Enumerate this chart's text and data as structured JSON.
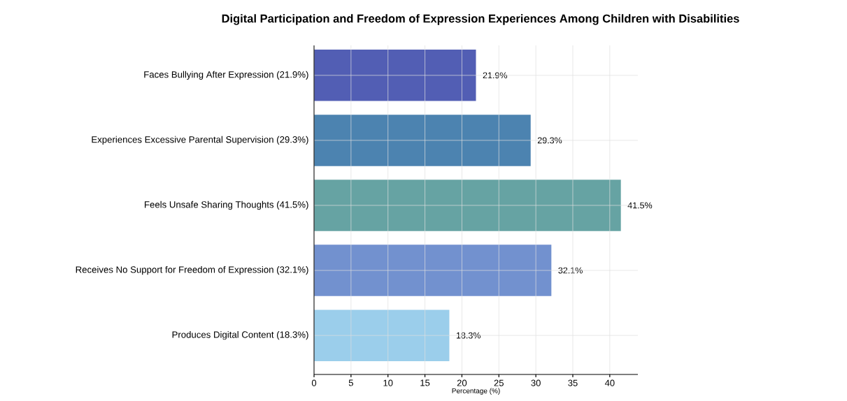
{
  "chart_data": {
    "type": "bar",
    "orientation": "horizontal",
    "title": "Digital Participation and Freedom of Expression Experiences Among  Children with Disabilities",
    "xlabel": "Percentage (%)",
    "categories": [
      "Faces Bullying After Expression (21.9%)",
      "Experiences Excessive Parental Supervision (29.3%)",
      "Feels Unsafe Sharing Thoughts (41.5%)",
      "Receives No Support for Freedom of Expression (32.1%)",
      "Produces Digital Content  (18.3%)"
    ],
    "values": [
      21.9,
      29.3,
      41.5,
      32.1,
      18.3
    ],
    "colors": [
      "#525eb4",
      "#4c83b0",
      "#66a3a3",
      "#7291cf",
      "#9bceeb"
    ],
    "value_labels": [
      "21.9%",
      "29.3%",
      "41.5%",
      "32.1%",
      "18.3%"
    ],
    "xlim": [
      0,
      43.8
    ],
    "xticks": [
      0,
      5,
      10,
      15,
      20,
      25,
      30,
      35,
      40
    ],
    "grid": true
  }
}
